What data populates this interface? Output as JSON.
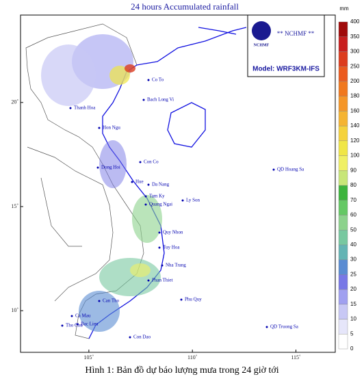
{
  "title": "24 hours Accumulated rainfall",
  "caption": "Hình 1: Bản đồ dự báo lượng mưa trong 24 giờ tới",
  "logo": {
    "badge": "NCHMF",
    "tag": "** NCHMF **",
    "model": "Model: WRF3KM-IFS"
  },
  "map": {
    "lon_range": [
      101.7,
      116.9
    ],
    "lat_range": [
      8.0,
      24.2
    ],
    "lon_ticks": [
      {
        "value": 105,
        "label": "105˚"
      },
      {
        "value": 110,
        "label": "110˚"
      },
      {
        "value": 115,
        "label": "115˚"
      }
    ],
    "lat_ticks": [
      {
        "value": 10,
        "label": "10˚"
      },
      {
        "value": 15,
        "label": "15˚"
      },
      {
        "value": 20,
        "label": "20˚"
      }
    ],
    "places": [
      "Co To",
      "Bach Long Vi",
      "Thanh Hoa",
      "Hon Ngu",
      "Dong Hoi",
      "Con Co",
      "Hue",
      "Da Nang",
      "Ly Son",
      "Tam Ky",
      "Quang Ngai",
      "Quy Nhon",
      "Tuy Hoa",
      "Nha Trang",
      "Phan Thiet",
      "Phu Quy",
      "Can Tho",
      "Bac Lieu",
      "Ca Mau",
      "Tho Chu",
      "Con Dao",
      "QD Hoang Sa",
      "QD Truong Sa"
    ]
  },
  "colorbar": {
    "unit": "mm",
    "levels": [
      0,
      5,
      10,
      15,
      20,
      25,
      30,
      40,
      50,
      60,
      70,
      80,
      90,
      100,
      120,
      140,
      160,
      180,
      200,
      250,
      300,
      350,
      400
    ],
    "colors": [
      "#ffffff",
      "#e6e6fa",
      "#c8c8f5",
      "#a0a0f0",
      "#7878e6",
      "#5a8cd2",
      "#64b4b4",
      "#78c8a0",
      "#8cd28c",
      "#64c864",
      "#3cb43c",
      "#c8e678",
      "#f0f064",
      "#f0e646",
      "#f5d23c",
      "#f5b432",
      "#f59628",
      "#f0781e",
      "#eb5a1e",
      "#dc3c1e",
      "#c81e1e",
      "#a00a0a"
    ]
  }
}
